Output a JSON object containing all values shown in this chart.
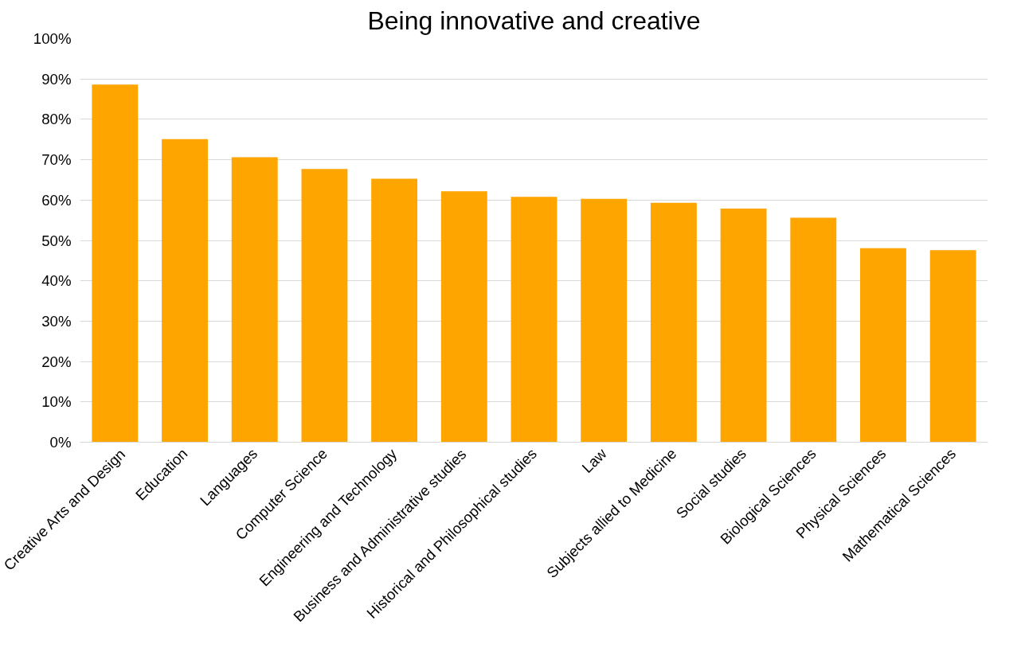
{
  "chart_data": {
    "type": "bar",
    "title": "Being innovative and creative",
    "categories": [
      "Creative Arts and Design",
      "Education",
      "Languages",
      "Computer Science",
      "Engineering and Technology",
      "Business and Administrative studies",
      "Historical and Philosophical studies",
      "Law",
      "Subjects allied to Medicine",
      "Social studies",
      "Biological Sciences",
      "Physical Sciences",
      "Mathematical Sciences"
    ],
    "values": [
      88.6,
      75.1,
      70.6,
      67.7,
      65.3,
      62.2,
      60.8,
      60.3,
      59.3,
      57.9,
      55.6,
      48.1,
      47.6
    ],
    "color": "#ffa500",
    "ylim": [
      0,
      100
    ],
    "yticks": [
      {
        "value": 0,
        "label": "0%"
      },
      {
        "value": 10,
        "label": "10%"
      },
      {
        "value": 20,
        "label": "20%"
      },
      {
        "value": 30,
        "label": "30%"
      },
      {
        "value": 40,
        "label": "40%"
      },
      {
        "value": 50,
        "label": "50%"
      },
      {
        "value": 60,
        "label": "60%"
      },
      {
        "value": 70,
        "label": "70%"
      },
      {
        "value": 80,
        "label": "80%"
      },
      {
        "value": 90,
        "label": "90%"
      },
      {
        "value": 100,
        "label": "100%"
      }
    ],
    "grid": "y"
  }
}
